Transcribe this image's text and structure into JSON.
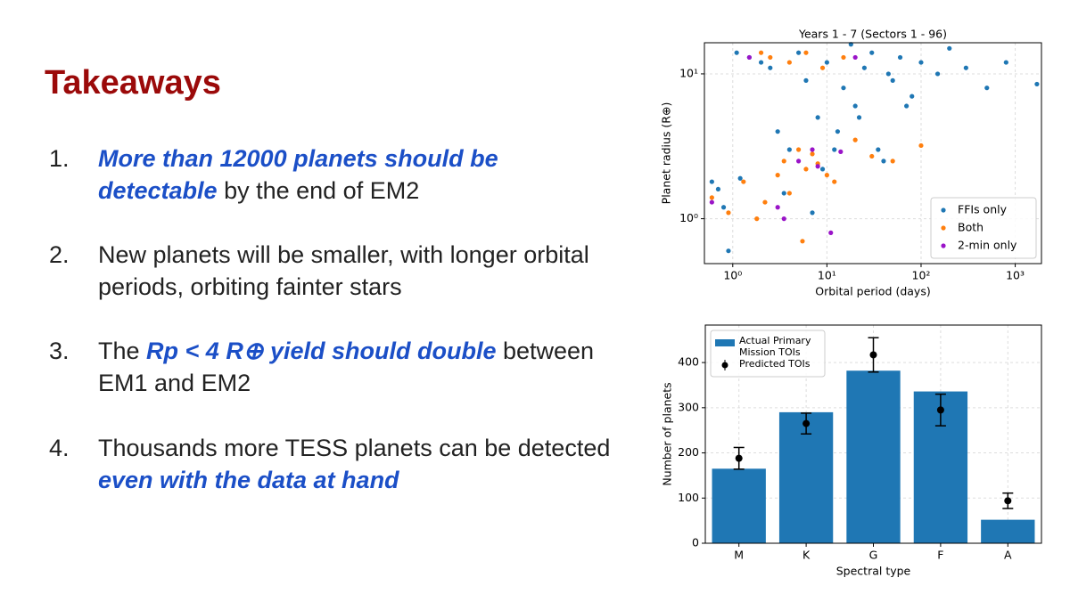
{
  "title": "Takeaways",
  "items": [
    {
      "number": "1.",
      "segments": [
        {
          "text": "More than 12000 planets should be detectable",
          "emphasis": true
        },
        {
          "text": "by the end of EM2",
          "emphasis": false
        }
      ]
    },
    {
      "number": "2.",
      "segments": [
        {
          "text": "New planets will be smaller, with longer orbital periods, orbiting fainter stars",
          "emphasis": false
        }
      ]
    },
    {
      "number": "3.",
      "segments": [
        {
          "text": "The",
          "emphasis": false
        },
        {
          "text": "Rp < 4 R⊕ yield should double",
          "emphasis": true
        },
        {
          "text": "between EM1 and EM2",
          "emphasis": false
        }
      ]
    },
    {
      "number": "4.",
      "segments": [
        {
          "text": "Thousands more TESS planets can be detected",
          "emphasis": false
        },
        {
          "text": "even with the data at hand",
          "emphasis": true
        }
      ]
    }
  ],
  "chart_data": [
    {
      "type": "scatter",
      "title": "Years 1 - 7 (Sectors 1 - 96)",
      "xlabel": "Orbital period (days)",
      "ylabel": "Planet radius (R⊕)",
      "xscale": "log",
      "yscale": "log",
      "xlim": [
        0.5,
        1900
      ],
      "ylim": [
        0.49,
        16.4
      ],
      "xticks": [
        {
          "value": 1,
          "label": "10⁰"
        },
        {
          "value": 10,
          "label": "10¹"
        },
        {
          "value": 100,
          "label": "10²"
        },
        {
          "value": 1000,
          "label": "10³"
        }
      ],
      "yticks": [
        {
          "value": 1,
          "label": "10⁰"
        },
        {
          "value": 10,
          "label": "10¹"
        }
      ],
      "grid": true,
      "legend": "lower right",
      "series": [
        {
          "name": "FFIs only",
          "color": "#1f77b4",
          "x": [
            0.6,
            0.8,
            0.9,
            1.2,
            1.5,
            2.0,
            2.5,
            3,
            4,
            5,
            6,
            8,
            10,
            12,
            15,
            20,
            25,
            30,
            40,
            50,
            60,
            80,
            100,
            150,
            200,
            300,
            500,
            800,
            1700,
            3.5,
            7,
            9,
            13,
            18,
            22,
            35,
            45,
            70,
            1.1,
            0.7
          ],
          "y": [
            1.8,
            1.2,
            0.6,
            1.9,
            13,
            12,
            11,
            4,
            3,
            14,
            9,
            5,
            12,
            3,
            8,
            6,
            11,
            14,
            2.5,
            9,
            13,
            7,
            12,
            10,
            15,
            11,
            8,
            12,
            8.5,
            1.5,
            1.1,
            2.2,
            4,
            16,
            5,
            3,
            10,
            6,
            14,
            1.6
          ]
        },
        {
          "name": "Both",
          "color": "#ff7f0e",
          "x": [
            0.6,
            0.9,
            1.3,
            2,
            2.5,
            3,
            3.5,
            4,
            5,
            6,
            7,
            8,
            10,
            12,
            15,
            20,
            30,
            4,
            6,
            9,
            2.2,
            1.8,
            50,
            100,
            5.5
          ],
          "y": [
            1.4,
            1.1,
            1.8,
            14,
            13,
            2,
            2.5,
            1.5,
            3,
            2.2,
            2.8,
            2.4,
            2,
            1.8,
            13,
            3.5,
            2.7,
            12,
            14,
            11,
            1.3,
            1.0,
            2.5,
            3.2,
            0.7
          ]
        },
        {
          "name": "2-min only",
          "color": "#9a14c8",
          "x": [
            0.6,
            1.5,
            3,
            5,
            7,
            8,
            11,
            14,
            3.5,
            20
          ],
          "y": [
            1.3,
            13,
            1.2,
            2.5,
            3,
            2.3,
            0.8,
            2.9,
            1.0,
            13
          ]
        }
      ]
    },
    {
      "type": "bar",
      "xlabel": "Spectral type",
      "ylabel": "Number of planets",
      "categories": [
        "M",
        "K",
        "G",
        "F",
        "A"
      ],
      "ylim": [
        0,
        483
      ],
      "yticks": [
        0,
        100,
        200,
        300,
        400
      ],
      "grid": true,
      "legend": "upper left",
      "series": [
        {
          "name": "Actual Primary Mission TOIs",
          "type": "bar",
          "color": "#1f77b4",
          "values": [
            165,
            290,
            382,
            336,
            52
          ]
        },
        {
          "name": "Predicted TOIs",
          "type": "errorbar",
          "color": "#000000",
          "values": [
            188,
            265,
            417,
            295,
            94
          ],
          "errors": [
            24,
            23,
            38,
            35,
            17
          ]
        }
      ]
    }
  ]
}
